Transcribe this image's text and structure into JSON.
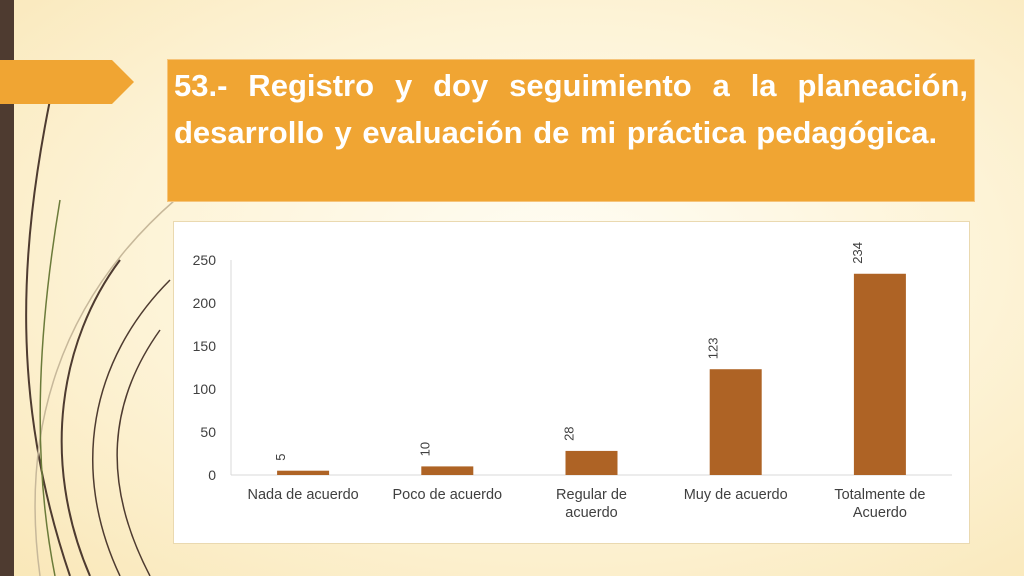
{
  "title": "53.- Registro y doy seguimiento a la planeación, desarrollo y evaluación de mi práctica pedagógica.",
  "colors": {
    "accent": "#f0a533",
    "bar": "#ae6325",
    "left_bar": "#4e3b30"
  },
  "chart_data": {
    "type": "bar",
    "categories": [
      [
        "Nada de acuerdo"
      ],
      [
        "Poco de acuerdo"
      ],
      [
        "Regular de",
        "acuerdo"
      ],
      [
        "Muy de acuerdo"
      ],
      [
        "Totalmente de",
        "Acuerdo"
      ]
    ],
    "values": [
      5,
      10,
      28,
      123,
      234
    ],
    "ylim": [
      0,
      250
    ],
    "yticks": [
      0,
      50,
      100,
      150,
      200,
      250
    ],
    "grid": false,
    "legend": "none",
    "data_labels": "rotated-vertical"
  }
}
